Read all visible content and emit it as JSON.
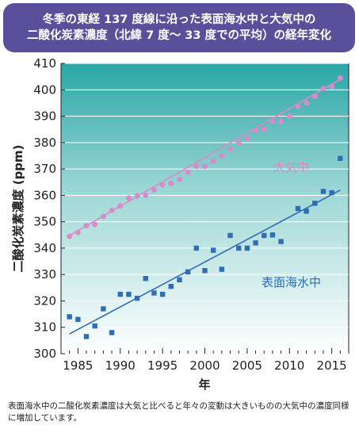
{
  "title_line1": "冬季の東経 137 度線に沿った表面海水中と大気中の",
  "title_line2": "二酸化炭素濃度（北緯 7 度～ 33 度での平均）の経年変化",
  "caption": "表面海水中の二酸化炭素濃度は大気と比べると年々の変動は大きいものの大気中の濃度同様に増加しています。",
  "colors": {
    "title_bg": "#5a4f9b",
    "atmosphere": "#d98bc9",
    "seawater": "#2f6db5",
    "gradient_top": "#2aa6a6",
    "gradient_bottom": "#ffffff"
  },
  "chart_data": {
    "type": "scatter",
    "xlabel": "年",
    "ylabel": "二酸化炭素濃度 (ppm)",
    "xlim": [
      1983,
      2017
    ],
    "ylim": [
      300,
      410
    ],
    "xticks": [
      1985,
      1990,
      1995,
      2000,
      2005,
      2010,
      2015
    ],
    "yticks": [
      300,
      310,
      320,
      330,
      340,
      350,
      360,
      370,
      380,
      390,
      400,
      410
    ],
    "series": [
      {
        "name": "大気中",
        "marker": "circle",
        "x": [
          1984,
          1985,
          1986,
          1987,
          1988,
          1989,
          1990,
          1991,
          1992,
          1993,
          1994,
          1995,
          1996,
          1997,
          1998,
          1999,
          2000,
          2001,
          2002,
          2003,
          2004,
          2005,
          2006,
          2007,
          2008,
          2009,
          2010,
          2011,
          2012,
          2013,
          2014,
          2015,
          2016
        ],
        "y": [
          344.5,
          346,
          348.5,
          349,
          352,
          354.3,
          356,
          359,
          359.8,
          360,
          362,
          364,
          364.5,
          366,
          368.8,
          371,
          371,
          373,
          375,
          377.5,
          380,
          381.5,
          384.5,
          385,
          388,
          388,
          390,
          393.8,
          395,
          397.5,
          400.5,
          401.2,
          404.5
        ],
        "trend": [
          [
            1984,
            344.8
          ],
          [
            2016,
            404
          ]
        ]
      },
      {
        "name": "表面海水中",
        "marker": "square",
        "x": [
          1984,
          1985,
          1986,
          1987,
          1988,
          1989,
          1990,
          1991,
          1992,
          1993,
          1994,
          1995,
          1996,
          1997,
          1998,
          1999,
          2000,
          2001,
          2002,
          2003,
          2004,
          2005,
          2006,
          2007,
          2008,
          2009,
          2011,
          2012,
          2013,
          2014,
          2015,
          2016
        ],
        "y": [
          314,
          313,
          306.5,
          310.5,
          317,
          308,
          322.5,
          322.5,
          321,
          328.5,
          323,
          322.5,
          325.5,
          328,
          331,
          340,
          331.5,
          339.2,
          332,
          344.8,
          340,
          340,
          342,
          344.8,
          345,
          342.5,
          355,
          354,
          357,
          361.5,
          361,
          374
        ],
        "trend": [
          [
            1984,
            307.5
          ],
          [
            2016,
            362
          ]
        ]
      }
    ]
  }
}
